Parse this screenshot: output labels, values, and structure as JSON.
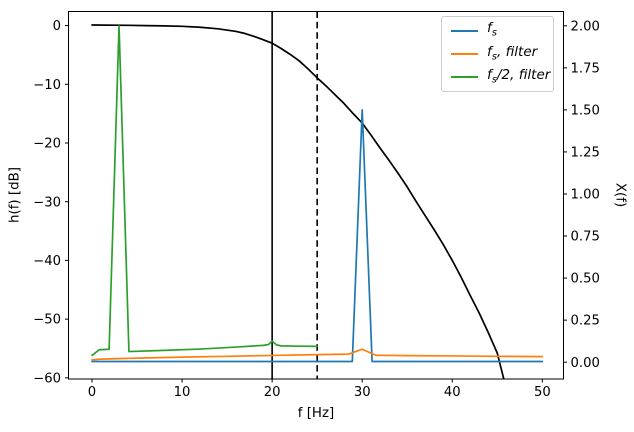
{
  "figure": {
    "axis_labels": {
      "left": "h(f) [dB]",
      "bottom": "f [Hz]",
      "right": "X(f)"
    }
  },
  "legend": {
    "position": "upper right",
    "items": [
      {
        "name": "fs",
        "color": "#1f77b4",
        "pre": "f",
        "sub": "s",
        "post": ""
      },
      {
        "name": "fs-filter",
        "color": "#ff7f0e",
        "pre": "f",
        "sub": "s",
        "post": ", filter"
      },
      {
        "name": "fs2-filter",
        "color": "#2ca02c",
        "pre": "f",
        "sub": "s",
        "post": "/2, filter"
      }
    ]
  },
  "chart_data": {
    "type": "line",
    "title": "",
    "xlabel": "f [Hz]",
    "ylabel_left": "h(f) [dB]",
    "ylabel_right": "X(f)",
    "grid": false,
    "legend_position": "upper right",
    "legend_entries": [
      "fs",
      "fs, filter",
      "fs/2, filter"
    ],
    "xlim": [
      -2.61,
      52.35
    ],
    "ylim_left": [
      -60.2,
      2.4
    ],
    "ylim_right": [
      -0.1,
      2.085
    ],
    "x_ticks": [
      0,
      10,
      20,
      30,
      40,
      50
    ],
    "x_tick_labels": [
      "0",
      "10",
      "20",
      "30",
      "40",
      "50"
    ],
    "y_left_ticks": [
      0,
      -10,
      -20,
      -30,
      -40,
      -50,
      -60
    ],
    "y_left_tick_labels": [
      "0",
      "−10",
      "−20",
      "−30",
      "−40",
      "−50",
      "−60"
    ],
    "y_right_ticks": [
      0,
      0.25,
      0.5,
      0.75,
      1,
      1.25,
      1.5,
      1.75,
      2
    ],
    "y_right_tick_labels": [
      "0.00",
      "0.25",
      "0.50",
      "0.75",
      "1.00",
      "1.25",
      "1.50",
      "1.75",
      "2.00"
    ],
    "vlines": [
      {
        "x": 20,
        "style": "solid",
        "color": "#000000"
      },
      {
        "x": 25,
        "style": "dashed",
        "color": "#000000"
      }
    ],
    "series": [
      {
        "name": "filter-response-h",
        "label": "",
        "axis": "left",
        "color": "#000000",
        "points": [
          [
            0,
            0.1
          ],
          [
            4,
            0.05
          ],
          [
            6,
            0
          ],
          [
            8,
            -0.05
          ],
          [
            10,
            -0.12
          ],
          [
            12,
            -0.28
          ],
          [
            14,
            -0.55
          ],
          [
            16,
            -1.0
          ],
          [
            17,
            -1.35
          ],
          [
            18,
            -1.85
          ],
          [
            19,
            -2.4
          ],
          [
            20,
            -3.0
          ],
          [
            21,
            -3.9
          ],
          [
            22,
            -4.9
          ],
          [
            23,
            -6.0
          ],
          [
            24,
            -7.4
          ],
          [
            25,
            -8.9
          ],
          [
            26,
            -10.3
          ],
          [
            27,
            -11.8
          ],
          [
            28,
            -13.3
          ],
          [
            29,
            -15.0
          ],
          [
            30,
            -16.6
          ],
          [
            31,
            -18.7
          ],
          [
            32,
            -20.9
          ],
          [
            33,
            -23.0
          ],
          [
            34,
            -25.2
          ],
          [
            35,
            -27.5
          ],
          [
            36,
            -30.0
          ],
          [
            37,
            -32.4
          ],
          [
            38,
            -34.8
          ],
          [
            39,
            -37.3
          ],
          [
            40,
            -40.0
          ],
          [
            41,
            -42.9
          ],
          [
            42,
            -46.0
          ],
          [
            43,
            -49.0
          ],
          [
            44,
            -52.3
          ],
          [
            45,
            -55.8
          ],
          [
            45.8,
            -60.7
          ]
        ]
      },
      {
        "name": "fs",
        "label": "fs",
        "axis": "right",
        "color": "#1f77b4",
        "points": [
          [
            0,
            0.004
          ],
          [
            28.9,
            0.004
          ],
          [
            30,
            1.5
          ],
          [
            31.1,
            0.004
          ],
          [
            50,
            0.004
          ]
        ]
      },
      {
        "name": "fs-filter",
        "label": "fs, filter",
        "axis": "right",
        "color": "#ff7f0e",
        "points": [
          [
            0,
            0.014
          ],
          [
            1,
            0.018
          ],
          [
            3,
            0.021
          ],
          [
            5,
            0.024
          ],
          [
            10,
            0.03
          ],
          [
            15,
            0.035
          ],
          [
            20,
            0.04
          ],
          [
            25,
            0.045
          ],
          [
            28.5,
            0.048
          ],
          [
            30,
            0.077
          ],
          [
            31.5,
            0.041
          ],
          [
            35,
            0.039
          ],
          [
            40,
            0.037
          ],
          [
            45,
            0.035
          ],
          [
            50,
            0.033
          ]
        ]
      },
      {
        "name": "fs2-filter",
        "label": "fs/2, filter",
        "axis": "right",
        "color": "#2ca02c",
        "points": [
          [
            0,
            0.04
          ],
          [
            0.8,
            0.074
          ],
          [
            1.9,
            0.077
          ],
          [
            3,
            2.0
          ],
          [
            4.1,
            0.063
          ],
          [
            8,
            0.07
          ],
          [
            12,
            0.078
          ],
          [
            16,
            0.09
          ],
          [
            19,
            0.1
          ],
          [
            19.6,
            0.105
          ],
          [
            20,
            0.125
          ],
          [
            20.5,
            0.103
          ],
          [
            21,
            0.097
          ],
          [
            23,
            0.095
          ],
          [
            25,
            0.094
          ]
        ]
      }
    ]
  }
}
